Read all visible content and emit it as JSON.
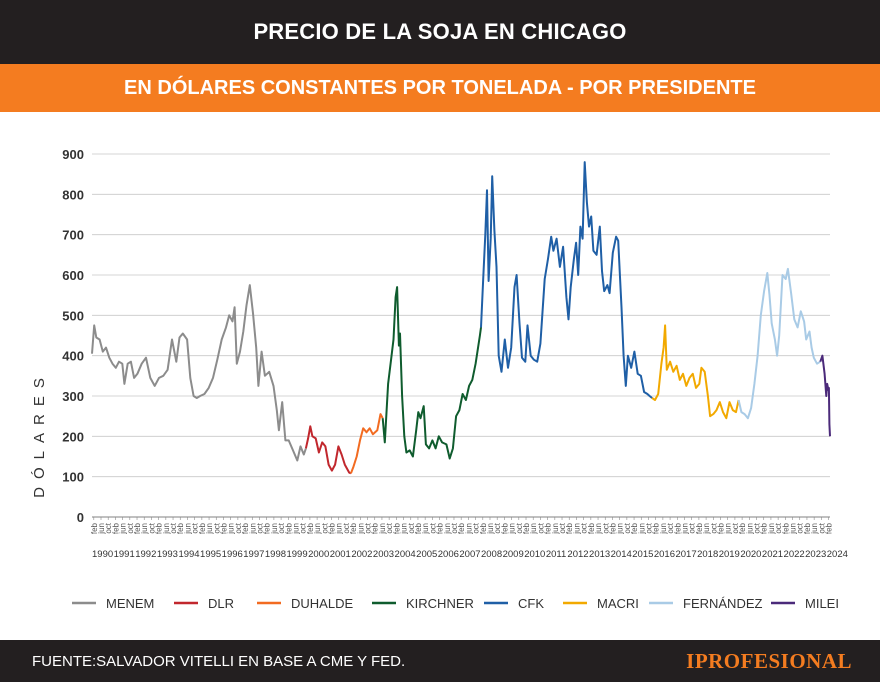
{
  "header": {
    "title": "PRECIO DE LA SOJA EN CHICAGO"
  },
  "subheader": {
    "subtitle": "EN DÓLARES CONSTANTES POR TONELADA - POR PRESIDENTE"
  },
  "footer": {
    "source": "FUENTE:SALVADOR VITELLI EN BASE A CME Y FED.",
    "brand": "IPROFESIONAL"
  },
  "chart_data": {
    "type": "line",
    "title": "PRECIO DE LA SOJA EN CHICAGO",
    "subtitle": "EN DÓLARES CONSTANTES POR TONELADA - POR PRESIDENTE",
    "ylabel": "DÓLARES",
    "xlabel": "",
    "ylim": [
      0,
      900
    ],
    "yticks": [
      0,
      100,
      200,
      300,
      400,
      500,
      600,
      700,
      800,
      900
    ],
    "xlim": [
      1990.0,
      2024.15
    ],
    "year_labels": [
      "1990",
      "1991",
      "1992",
      "1993",
      "1994",
      "1995",
      "1996",
      "1997",
      "1998",
      "1999",
      "2000",
      "2001",
      "2002",
      "2003",
      "2004",
      "2005",
      "2006",
      "2007",
      "2008",
      "2009",
      "2010",
      "2011",
      "2012",
      "2013",
      "2014",
      "2015",
      "2016",
      "2017",
      "2018",
      "2019",
      "2020",
      "2021",
      "2022",
      "2023",
      "2024"
    ],
    "month_tick_labels": [
      "feb",
      "jun",
      "oct"
    ],
    "grid": true,
    "legend_position": "bottom",
    "series": [
      {
        "name": "MENEM",
        "color": "#8c8c8c",
        "points": [
          [
            1990.0,
            405
          ],
          [
            1990.1,
            475
          ],
          [
            1990.2,
            445
          ],
          [
            1990.35,
            440
          ],
          [
            1990.5,
            410
          ],
          [
            1990.65,
            420
          ],
          [
            1990.8,
            395
          ],
          [
            1990.95,
            380
          ],
          [
            1991.1,
            370
          ],
          [
            1991.25,
            385
          ],
          [
            1991.4,
            380
          ],
          [
            1991.5,
            330
          ],
          [
            1991.65,
            380
          ],
          [
            1991.8,
            385
          ],
          [
            1991.95,
            345
          ],
          [
            1992.1,
            355
          ],
          [
            1992.3,
            380
          ],
          [
            1992.5,
            395
          ],
          [
            1992.7,
            345
          ],
          [
            1992.9,
            325
          ],
          [
            1993.1,
            345
          ],
          [
            1993.3,
            350
          ],
          [
            1993.5,
            365
          ],
          [
            1993.7,
            440
          ],
          [
            1993.9,
            385
          ],
          [
            1994.05,
            445
          ],
          [
            1994.2,
            455
          ],
          [
            1994.4,
            440
          ],
          [
            1994.55,
            345
          ],
          [
            1994.7,
            300
          ],
          [
            1994.85,
            295
          ],
          [
            1995.0,
            300
          ],
          [
            1995.2,
            305
          ],
          [
            1995.4,
            320
          ],
          [
            1995.6,
            345
          ],
          [
            1995.8,
            390
          ],
          [
            1996.0,
            440
          ],
          [
            1996.2,
            470
          ],
          [
            1996.35,
            500
          ],
          [
            1996.5,
            485
          ],
          [
            1996.6,
            520
          ],
          [
            1996.7,
            380
          ],
          [
            1996.85,
            410
          ],
          [
            1997.0,
            460
          ],
          [
            1997.15,
            525
          ],
          [
            1997.3,
            575
          ],
          [
            1997.45,
            505
          ],
          [
            1997.6,
            420
          ],
          [
            1997.7,
            325
          ],
          [
            1997.85,
            410
          ],
          [
            1998.0,
            350
          ],
          [
            1998.2,
            360
          ],
          [
            1998.4,
            325
          ],
          [
            1998.55,
            265
          ],
          [
            1998.65,
            215
          ],
          [
            1998.8,
            285
          ],
          [
            1998.95,
            190
          ],
          [
            1999.1,
            190
          ],
          [
            1999.3,
            165
          ],
          [
            1999.5,
            140
          ],
          [
            1999.65,
            175
          ],
          [
            1999.8,
            155
          ],
          [
            1999.9,
            170
          ]
        ]
      },
      {
        "name": "DLR",
        "color": "#c1272d",
        "points": [
          [
            1999.9,
            170
          ],
          [
            2000.0,
            195
          ],
          [
            2000.1,
            225
          ],
          [
            2000.2,
            200
          ],
          [
            2000.35,
            195
          ],
          [
            2000.5,
            160
          ],
          [
            2000.65,
            185
          ],
          [
            2000.8,
            175
          ],
          [
            2000.95,
            130
          ],
          [
            2001.1,
            115
          ],
          [
            2001.25,
            130
          ],
          [
            2001.4,
            175
          ],
          [
            2001.55,
            155
          ],
          [
            2001.7,
            130
          ],
          [
            2001.9,
            110
          ],
          [
            2001.98,
            108
          ]
        ]
      },
      {
        "name": "DUHALDE",
        "color": "#f26b21",
        "points": [
          [
            2001.98,
            108
          ],
          [
            2002.1,
            125
          ],
          [
            2002.25,
            150
          ],
          [
            2002.4,
            190
          ],
          [
            2002.55,
            220
          ],
          [
            2002.7,
            210
          ],
          [
            2002.85,
            220
          ],
          [
            2003.0,
            205
          ],
          [
            2003.2,
            215
          ],
          [
            2003.35,
            255
          ],
          [
            2003.45,
            245
          ]
        ]
      },
      {
        "name": "KIRCHNER",
        "color": "#0f5c2e",
        "points": [
          [
            2003.45,
            245
          ],
          [
            2003.55,
            185
          ],
          [
            2003.7,
            330
          ],
          [
            2003.85,
            395
          ],
          [
            2003.95,
            440
          ],
          [
            2004.05,
            545
          ],
          [
            2004.12,
            570
          ],
          [
            2004.2,
            425
          ],
          [
            2004.25,
            455
          ],
          [
            2004.35,
            300
          ],
          [
            2004.45,
            200
          ],
          [
            2004.55,
            160
          ],
          [
            2004.7,
            165
          ],
          [
            2004.85,
            150
          ],
          [
            2005.0,
            215
          ],
          [
            2005.1,
            260
          ],
          [
            2005.2,
            245
          ],
          [
            2005.35,
            275
          ],
          [
            2005.45,
            180
          ],
          [
            2005.6,
            170
          ],
          [
            2005.75,
            190
          ],
          [
            2005.9,
            170
          ],
          [
            2006.05,
            200
          ],
          [
            2006.2,
            185
          ],
          [
            2006.4,
            180
          ],
          [
            2006.55,
            145
          ],
          [
            2006.7,
            170
          ],
          [
            2006.85,
            250
          ],
          [
            2007.0,
            265
          ],
          [
            2007.15,
            305
          ],
          [
            2007.3,
            290
          ],
          [
            2007.45,
            325
          ],
          [
            2007.6,
            340
          ],
          [
            2007.75,
            380
          ],
          [
            2007.95,
            450
          ],
          [
            2008.0,
            470
          ]
        ]
      },
      {
        "name": "CFK",
        "color": "#1f5fa6",
        "points": [
          [
            2008.0,
            470
          ],
          [
            2008.1,
            590
          ],
          [
            2008.2,
            700
          ],
          [
            2008.28,
            810
          ],
          [
            2008.35,
            585
          ],
          [
            2008.45,
            690
          ],
          [
            2008.52,
            845
          ],
          [
            2008.62,
            710
          ],
          [
            2008.72,
            620
          ],
          [
            2008.82,
            400
          ],
          [
            2008.95,
            360
          ],
          [
            2009.1,
            440
          ],
          [
            2009.25,
            370
          ],
          [
            2009.4,
            420
          ],
          [
            2009.55,
            570
          ],
          [
            2009.65,
            600
          ],
          [
            2009.78,
            480
          ],
          [
            2009.9,
            395
          ],
          [
            2010.05,
            385
          ],
          [
            2010.15,
            475
          ],
          [
            2010.3,
            400
          ],
          [
            2010.45,
            390
          ],
          [
            2010.6,
            385
          ],
          [
            2010.75,
            430
          ],
          [
            2010.95,
            590
          ],
          [
            2011.1,
            640
          ],
          [
            2011.25,
            695
          ],
          [
            2011.35,
            660
          ],
          [
            2011.5,
            690
          ],
          [
            2011.65,
            620
          ],
          [
            2011.8,
            670
          ],
          [
            2011.95,
            545
          ],
          [
            2012.05,
            490
          ],
          [
            2012.15,
            570
          ],
          [
            2012.3,
            640
          ],
          [
            2012.4,
            680
          ],
          [
            2012.5,
            600
          ],
          [
            2012.6,
            720
          ],
          [
            2012.7,
            690
          ],
          [
            2012.8,
            880
          ],
          [
            2012.9,
            780
          ],
          [
            2013.0,
            720
          ],
          [
            2013.1,
            745
          ],
          [
            2013.2,
            660
          ],
          [
            2013.35,
            650
          ],
          [
            2013.5,
            720
          ],
          [
            2013.6,
            610
          ],
          [
            2013.7,
            560
          ],
          [
            2013.85,
            575
          ],
          [
            2013.95,
            555
          ],
          [
            2014.1,
            655
          ],
          [
            2014.25,
            695
          ],
          [
            2014.35,
            685
          ],
          [
            2014.5,
            520
          ],
          [
            2014.6,
            400
          ],
          [
            2014.7,
            325
          ],
          [
            2014.8,
            400
          ],
          [
            2014.95,
            370
          ],
          [
            2015.1,
            410
          ],
          [
            2015.25,
            355
          ],
          [
            2015.4,
            350
          ],
          [
            2015.55,
            310
          ],
          [
            2015.7,
            305
          ],
          [
            2015.8,
            300
          ],
          [
            2015.92,
            295
          ]
        ]
      },
      {
        "name": "MACRI",
        "color": "#f2a900",
        "points": [
          [
            2015.92,
            295
          ],
          [
            2016.05,
            290
          ],
          [
            2016.2,
            305
          ],
          [
            2016.35,
            380
          ],
          [
            2016.45,
            420
          ],
          [
            2016.52,
            475
          ],
          [
            2016.6,
            365
          ],
          [
            2016.75,
            385
          ],
          [
            2016.9,
            360
          ],
          [
            2017.05,
            375
          ],
          [
            2017.2,
            340
          ],
          [
            2017.35,
            355
          ],
          [
            2017.5,
            325
          ],
          [
            2017.65,
            345
          ],
          [
            2017.8,
            355
          ],
          [
            2017.95,
            320
          ],
          [
            2018.1,
            330
          ],
          [
            2018.2,
            370
          ],
          [
            2018.35,
            360
          ],
          [
            2018.5,
            300
          ],
          [
            2018.6,
            250
          ],
          [
            2018.75,
            255
          ],
          [
            2018.9,
            265
          ],
          [
            2019.05,
            285
          ],
          [
            2019.2,
            260
          ],
          [
            2019.35,
            245
          ],
          [
            2019.5,
            285
          ],
          [
            2019.65,
            265
          ],
          [
            2019.8,
            260
          ],
          [
            2019.92,
            290
          ]
        ]
      },
      {
        "name": "FERNÁNDEZ",
        "color": "#a9cbe6",
        "points": [
          [
            2019.92,
            290
          ],
          [
            2020.05,
            260
          ],
          [
            2020.2,
            255
          ],
          [
            2020.35,
            245
          ],
          [
            2020.5,
            270
          ],
          [
            2020.65,
            330
          ],
          [
            2020.8,
            400
          ],
          [
            2020.95,
            500
          ],
          [
            2021.1,
            560
          ],
          [
            2021.25,
            605
          ],
          [
            2021.35,
            550
          ],
          [
            2021.45,
            480
          ],
          [
            2021.6,
            440
          ],
          [
            2021.7,
            400
          ],
          [
            2021.8,
            450
          ],
          [
            2021.95,
            600
          ],
          [
            2022.1,
            590
          ],
          [
            2022.2,
            615
          ],
          [
            2022.35,
            555
          ],
          [
            2022.5,
            490
          ],
          [
            2022.65,
            470
          ],
          [
            2022.8,
            510
          ],
          [
            2022.95,
            485
          ],
          [
            2023.05,
            440
          ],
          [
            2023.2,
            460
          ],
          [
            2023.3,
            420
          ],
          [
            2023.4,
            395
          ],
          [
            2023.55,
            380
          ],
          [
            2023.7,
            385
          ]
        ]
      },
      {
        "name": "MILEI",
        "color": "#4b2a7a",
        "points": [
          [
            2023.7,
            385
          ],
          [
            2023.8,
            400
          ],
          [
            2023.9,
            355
          ],
          [
            2023.98,
            300
          ],
          [
            2024.02,
            330
          ],
          [
            2024.07,
            315
          ],
          [
            2024.1,
            320
          ],
          [
            2024.12,
            230
          ],
          [
            2024.15,
            200
          ]
        ]
      }
    ]
  }
}
